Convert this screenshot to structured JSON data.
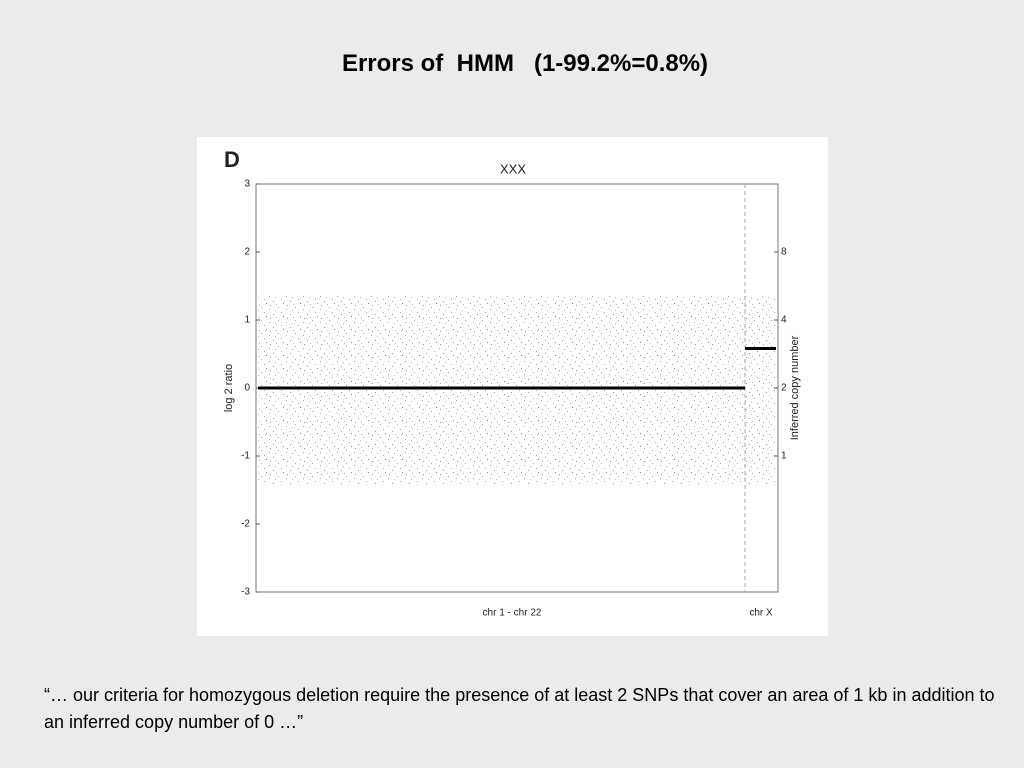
{
  "slide": {
    "title": "Errors of  HMM   (1-99.2%=0.8%)",
    "quote": "“… our criteria for homozygous deletion require the presence of at least 2  SNPs that cover an area of 1 kb in addition to an inferred copy number of 0 …”"
  },
  "chart_data": {
    "type": "step",
    "panel": "D",
    "title": "XXX",
    "ylabel": "log 2 ratio",
    "y2label": "Inferred copy number",
    "categories": [
      "chr 1 - chr 22",
      "chr X"
    ],
    "values": [
      0,
      0.58
    ],
    "color": "#000000",
    "ylim": [
      -3,
      3
    ],
    "yticks": [
      -3,
      -2,
      -1,
      0,
      1,
      2,
      3
    ],
    "y2lim": [
      0.25,
      16
    ],
    "y2ticks": [
      1,
      2,
      4,
      8
    ],
    "y2_log": true
  }
}
